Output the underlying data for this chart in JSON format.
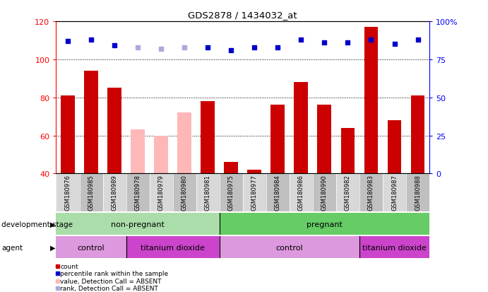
{
  "title": "GDS2878 / 1434032_at",
  "samples": [
    "GSM180976",
    "GSM180985",
    "GSM180989",
    "GSM180978",
    "GSM180979",
    "GSM180980",
    "GSM180981",
    "GSM180975",
    "GSM180977",
    "GSM180984",
    "GSM180986",
    "GSM180990",
    "GSM180982",
    "GSM180983",
    "GSM180987",
    "GSM180988"
  ],
  "bar_values": [
    81,
    94,
    85,
    63,
    60,
    72,
    78,
    46,
    42,
    76,
    88,
    76,
    64,
    117,
    68,
    81
  ],
  "bar_absent": [
    false,
    false,
    false,
    true,
    true,
    true,
    false,
    false,
    false,
    false,
    false,
    false,
    false,
    false,
    false,
    false
  ],
  "percentile_values": [
    87,
    88,
    84,
    83,
    82,
    83,
    83,
    81,
    83,
    83,
    88,
    86,
    86,
    88,
    85,
    88
  ],
  "percentile_absent": [
    false,
    false,
    false,
    true,
    true,
    true,
    false,
    false,
    false,
    false,
    false,
    false,
    false,
    false,
    false,
    false
  ],
  "ylim_left": [
    40,
    120
  ],
  "ylim_right": [
    0,
    100
  ],
  "yticks_left": [
    40,
    60,
    80,
    100,
    120
  ],
  "yticks_right": [
    0,
    25,
    50,
    75,
    100
  ],
  "ytick_labels_right": [
    "0",
    "25",
    "50",
    "75",
    "100%"
  ],
  "bar_color_present": "#cc0000",
  "bar_color_absent": "#ffb8b8",
  "dot_color_present": "#0000cc",
  "dot_color_absent": "#aaaadd",
  "col_bg_even": "#d8d8d8",
  "col_bg_odd": "#c0c0c0",
  "dev_nonpreg_color": "#aaddaa",
  "dev_preg_color": "#66cc66",
  "agent_control_color": "#dd99dd",
  "agent_tio2_color": "#cc44cc",
  "legend_items": [
    {
      "label": "count",
      "color": "#cc0000"
    },
    {
      "label": "percentile rank within the sample",
      "color": "#0000cc"
    },
    {
      "label": "value, Detection Call = ABSENT",
      "color": "#ffb8b8"
    },
    {
      "label": "rank, Detection Call = ABSENT",
      "color": "#aaaadd"
    }
  ]
}
